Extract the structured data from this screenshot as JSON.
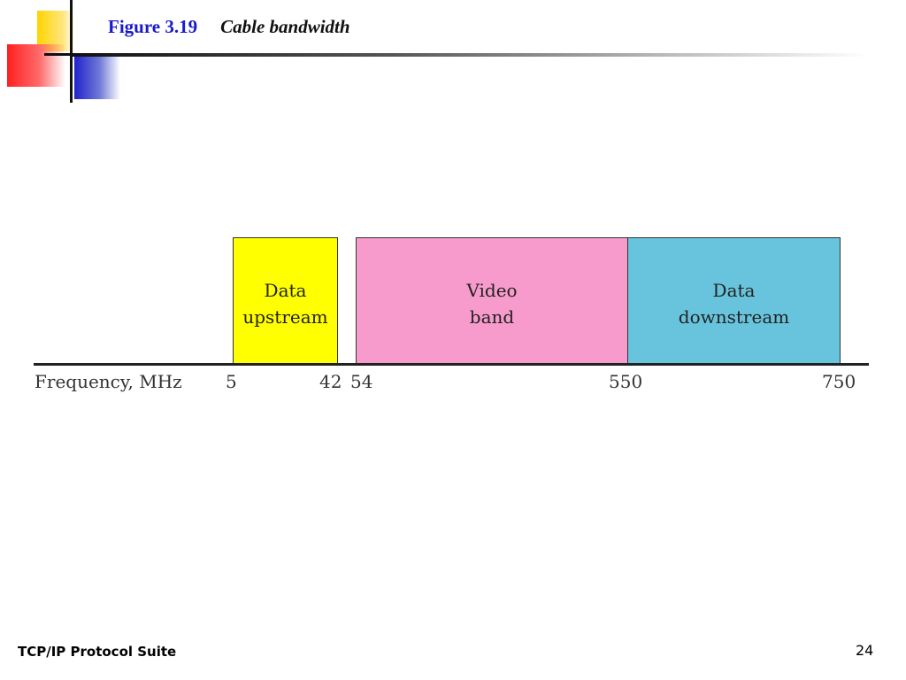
{
  "title": {
    "figure": "Figure 3.19",
    "caption": "Cable bandwidth"
  },
  "diagram": {
    "axis_label": "Frequency, MHz",
    "ticks": [
      "5",
      "42",
      "54",
      "550",
      "750"
    ],
    "bands": [
      {
        "line1": "Data",
        "line2": "upstream",
        "from_mhz": 5,
        "to_mhz": 42,
        "color": "#ffff00"
      },
      {
        "line1": "Video",
        "line2": "band",
        "from_mhz": 54,
        "to_mhz": 550,
        "color": "#f79bcc"
      },
      {
        "line1": "Data",
        "line2": "downstream",
        "from_mhz": 550,
        "to_mhz": 750,
        "color": "#68c4dc"
      }
    ]
  },
  "footer": {
    "left": "TCP/IP Protocol Suite",
    "page": "24"
  },
  "colors": {
    "title_accent": "#1a1acc",
    "logo_yellow": "#ffd400",
    "logo_red": "#ff2020",
    "logo_blue": "#2222cc"
  }
}
